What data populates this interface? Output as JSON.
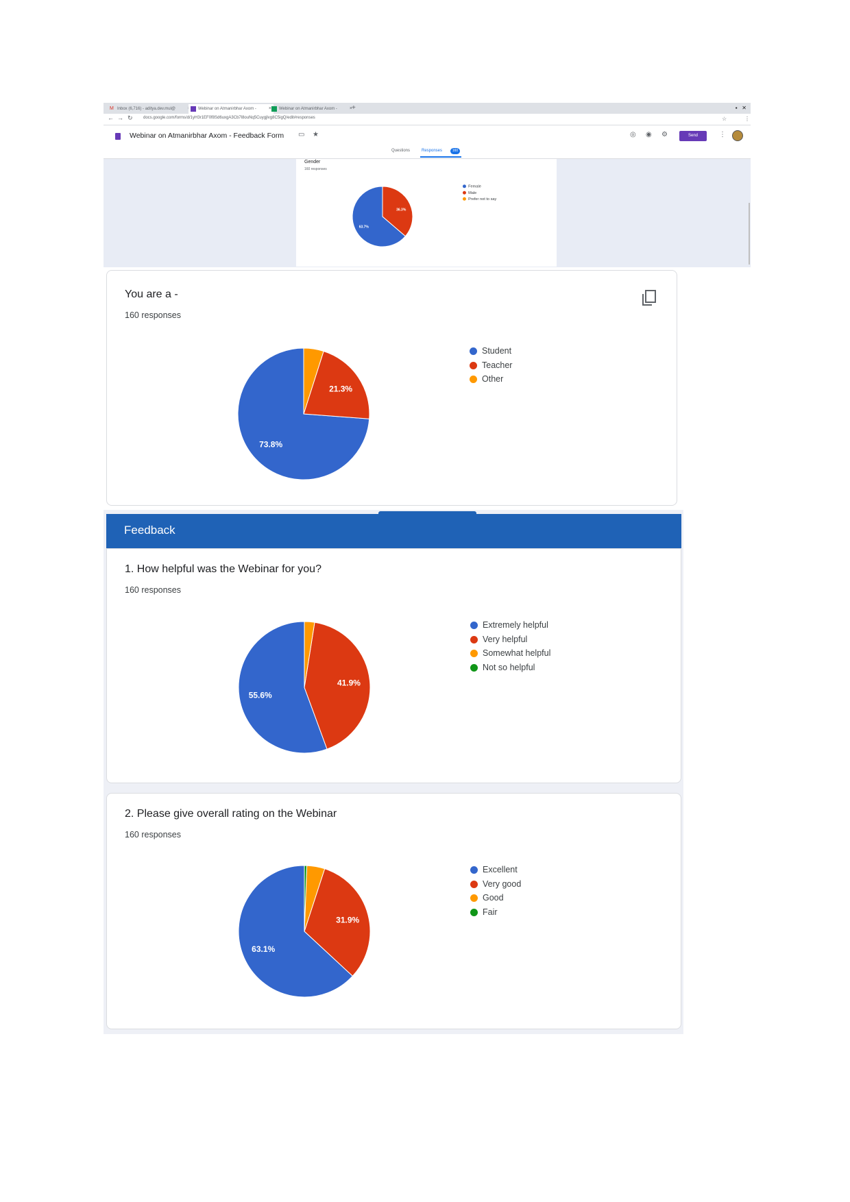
{
  "browser": {
    "tabs": [
      {
        "label": "Inbox (6,716) - aditya.dev.mul@"
      },
      {
        "label": "Webinar on Atmanirbhar Axom -"
      },
      {
        "label": "Webinar on Atmanirbhar Axom -"
      }
    ],
    "url": "docs.google.com/forms/d/1yH3r1EF0f8Sd6uxgA3Cb7l8ouNq5Cuygjlvg8C5igQ/edit#responses",
    "form_title": "Webinar on Atmanirbhar Axom - Feedback Form",
    "send_label": "Send",
    "subtabs": {
      "questions": "Questions",
      "responses": "Responses",
      "responses_count": "160"
    }
  },
  "gender": {
    "title": "Gender",
    "count": "160 responses",
    "legend": [
      "Female",
      "Male",
      "Prefer not to say"
    ],
    "labels": [
      "36.3%",
      "63.7%"
    ]
  },
  "q_role": {
    "title": "You are a -",
    "count": "160 responses",
    "legend": [
      "Student",
      "Teacher",
      "Other"
    ],
    "labels": [
      "73.8%",
      "21.3%"
    ]
  },
  "section": {
    "title": "Feedback"
  },
  "q1": {
    "title": "1. How helpful was the Webinar for you?",
    "count": "160 responses",
    "legend": [
      "Extremely helpful",
      "Very helpful",
      "Somewhat helpful",
      "Not so helpful"
    ],
    "labels": [
      "55.6%",
      "41.9%"
    ]
  },
  "q2": {
    "title": "2. Please give overall rating on the Webinar",
    "count": "160 responses",
    "legend": [
      "Excellent",
      "Very good",
      "Good",
      "Fair"
    ],
    "labels": [
      "63.1%",
      "31.9%"
    ]
  },
  "colors": [
    "#3366cc",
    "#dc3912",
    "#ff9900",
    "#109618"
  ],
  "chart_data": [
    {
      "type": "pie",
      "title": "Gender",
      "categories": [
        "Female",
        "Male",
        "Prefer not to say"
      ],
      "values": [
        63.7,
        36.3,
        0
      ],
      "labels": [
        "63.7%",
        "36.3%",
        ""
      ]
    },
    {
      "type": "pie",
      "title": "You are a -",
      "categories": [
        "Student",
        "Teacher",
        "Other"
      ],
      "values": [
        73.8,
        21.3,
        4.9
      ],
      "labels": [
        "73.8%",
        "21.3%",
        ""
      ]
    },
    {
      "type": "pie",
      "title": "1. How helpful was the Webinar for you?",
      "categories": [
        "Extremely helpful",
        "Very helpful",
        "Somewhat helpful",
        "Not so helpful"
      ],
      "values": [
        55.6,
        41.9,
        2.5,
        0
      ],
      "labels": [
        "55.6%",
        "41.9%",
        "",
        ""
      ]
    },
    {
      "type": "pie",
      "title": "2. Please give overall rating on the Webinar",
      "categories": [
        "Excellent",
        "Very good",
        "Good",
        "Fair"
      ],
      "values": [
        63.1,
        31.9,
        4.4,
        0.6
      ],
      "labels": [
        "63.1%",
        "31.9%",
        "",
        ""
      ]
    }
  ]
}
